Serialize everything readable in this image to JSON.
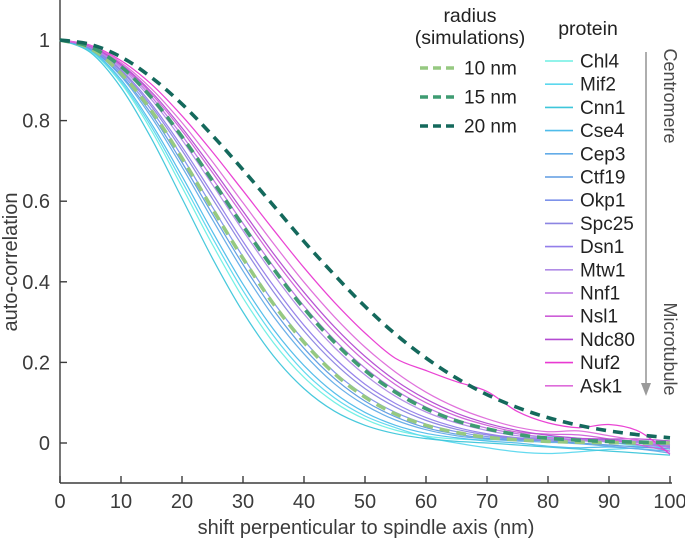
{
  "chart_data": {
    "type": "line",
    "title": "",
    "xlabel": "shift perpenticular to spindle axis (nm)",
    "ylabel": "auto-correlation",
    "xlim": [
      0,
      100
    ],
    "ylim": [
      -0.1,
      1.1
    ],
    "x_ticks": [
      0,
      10,
      20,
      30,
      40,
      50,
      60,
      70,
      80,
      90,
      100
    ],
    "y_ticks": [
      0,
      0.2,
      0.4,
      0.6,
      0.8,
      1
    ],
    "grid": false,
    "legend_position": "top-right",
    "x": [
      0,
      5,
      10,
      15,
      20,
      25,
      30,
      35,
      40,
      45,
      50,
      55,
      60,
      65,
      70,
      75,
      80,
      85,
      90,
      95,
      100
    ],
    "proteins": [
      {
        "name": "Chl4",
        "color": "#6FEFE4",
        "values": [
          1,
          0.972,
          0.893,
          0.775,
          0.635,
          0.492,
          0.36,
          0.249,
          0.163,
          0.101,
          0.059,
          0.032,
          0.017,
          0.01,
          0.008,
          0.012,
          0.016,
          0.012,
          0.002,
          -0.008,
          -0.015
        ]
      },
      {
        "name": "Mif2",
        "color": "#5CD8EE",
        "values": [
          1,
          0.973,
          0.897,
          0.784,
          0.649,
          0.509,
          0.378,
          0.266,
          0.177,
          0.112,
          0.067,
          0.038,
          0.015,
          0.0,
          -0.012,
          -0.022,
          -0.026,
          -0.022,
          -0.016,
          -0.012,
          -0.01
        ]
      },
      {
        "name": "Cnn1",
        "color": "#3EC6DA",
        "values": [
          1,
          0.969,
          0.882,
          0.755,
          0.607,
          0.458,
          0.325,
          0.216,
          0.135,
          0.079,
          0.044,
          0.023,
          0.011,
          0.004,
          0.0,
          -0.005,
          -0.01,
          -0.015,
          -0.02,
          -0.025,
          -0.03
        ]
      },
      {
        "name": "Cse4",
        "color": "#4FBCEA",
        "values": [
          1,
          0.975,
          0.902,
          0.792,
          0.662,
          0.524,
          0.394,
          0.282,
          0.192,
          0.124,
          0.076,
          0.044,
          0.024,
          0.013,
          0.005,
          0.0,
          -0.008,
          -0.012,
          -0.01,
          -0.015,
          -0.02
        ]
      },
      {
        "name": "Cep3",
        "color": "#63ACE8",
        "values": [
          1,
          0.977,
          0.91,
          0.808,
          0.685,
          0.554,
          0.427,
          0.314,
          0.221,
          0.147,
          0.094,
          0.057,
          0.033,
          0.018,
          0.01,
          0.005,
          0.002,
          -0.002,
          -0.008,
          -0.015,
          -0.025
        ]
      },
      {
        "name": "Ctf19",
        "color": "#5F9BE2",
        "values": [
          1,
          0.978,
          0.913,
          0.816,
          0.696,
          0.568,
          0.443,
          0.33,
          0.235,
          0.16,
          0.104,
          0.065,
          0.038,
          0.022,
          0.012,
          0.008,
          0.005,
          0.0,
          -0.005,
          -0.01,
          -0.015
        ]
      },
      {
        "name": "Okp1",
        "color": "#7D92EA",
        "values": [
          1,
          0.979,
          0.918,
          0.826,
          0.711,
          0.585,
          0.462,
          0.349,
          0.254,
          0.176,
          0.118,
          0.076,
          0.047,
          0.028,
          0.016,
          0.011,
          0.009,
          0.008,
          0.002,
          -0.005,
          -0.01
        ]
      },
      {
        "name": "Spc25",
        "color": "#8C85E2",
        "values": [
          1,
          0.98,
          0.923,
          0.835,
          0.726,
          0.606,
          0.487,
          0.375,
          0.278,
          0.198,
          0.135,
          0.089,
          0.056,
          0.034,
          0.02,
          0.011,
          0.006,
          0.005,
          0.005,
          0.0,
          -0.008
        ]
      },
      {
        "name": "Dsn1",
        "color": "#937EEA",
        "values": [
          1,
          0.981,
          0.926,
          0.841,
          0.735,
          0.618,
          0.5,
          0.39,
          0.292,
          0.211,
          0.146,
          0.098,
          0.063,
          0.039,
          0.023,
          0.013,
          0.01,
          0.01,
          0.008,
          0.003,
          -0.005
        ]
      },
      {
        "name": "Mtw1",
        "color": "#B18CE6",
        "values": [
          1,
          0.982,
          0.931,
          0.852,
          0.752,
          0.641,
          0.527,
          0.418,
          0.32,
          0.237,
          0.169,
          0.116,
          0.077,
          0.05,
          0.031,
          0.018,
          0.011,
          0.006,
          0.004,
          0.006,
          0.0
        ]
      },
      {
        "name": "Nnf1",
        "color": "#BC74E2",
        "values": [
          1,
          0.983,
          0.935,
          0.859,
          0.763,
          0.656,
          0.545,
          0.438,
          0.34,
          0.256,
          0.186,
          0.131,
          0.089,
          0.058,
          0.037,
          0.023,
          0.014,
          0.008,
          0.005,
          0.0,
          -0.012
        ]
      },
      {
        "name": "Nsl1",
        "color": "#CD5ED8",
        "values": [
          1,
          0.984,
          0.938,
          0.866,
          0.775,
          0.671,
          0.564,
          0.458,
          0.361,
          0.275,
          0.203,
          0.145,
          0.1,
          0.067,
          0.044,
          0.027,
          0.022,
          0.02,
          0.01,
          -0.005,
          -0.02
        ]
      },
      {
        "name": "Ndc80",
        "color": "#B44BD2",
        "values": [
          1,
          0.985,
          0.94,
          0.871,
          0.782,
          0.681,
          0.575,
          0.47,
          0.374,
          0.288,
          0.215,
          0.155,
          0.109,
          0.074,
          0.049,
          0.031,
          0.019,
          0.012,
          0.01,
          0.01,
          0.005
        ]
      },
      {
        "name": "Nuf2",
        "color": "#E93AD2",
        "values": [
          1,
          0.987,
          0.949,
          0.89,
          0.812,
          0.722,
          0.626,
          0.529,
          0.435,
          0.349,
          0.273,
          0.21,
          0.18,
          0.152,
          0.128,
          0.078,
          0.05,
          0.038,
          0.046,
          0.028,
          -0.028
        ]
      },
      {
        "name": "Ask1",
        "color": "#DE6CDA",
        "values": [
          1,
          0.986,
          0.944,
          0.879,
          0.795,
          0.698,
          0.596,
          0.495,
          0.399,
          0.313,
          0.238,
          0.176,
          0.126,
          0.088,
          0.06,
          0.039,
          0.028,
          0.03,
          0.018,
          0.006,
          -0.005
        ]
      }
    ],
    "simulations": [
      {
        "name": "10 nm",
        "color": "#96C981",
        "values": [
          1,
          0.979,
          0.917,
          0.824,
          0.707,
          0.581,
          0.458,
          0.345,
          0.25,
          0.172,
          0.114,
          0.072,
          0.044,
          0.026,
          0.014,
          0.008,
          0.004,
          0.002,
          0.001,
          0.0,
          0.0
        ]
      },
      {
        "name": "15 nm",
        "color": "#3E9C72",
        "values": [
          1,
          0.983,
          0.934,
          0.857,
          0.76,
          0.651,
          0.539,
          0.432,
          0.334,
          0.25,
          0.18,
          0.126,
          0.085,
          0.055,
          0.035,
          0.021,
          0.012,
          0.007,
          0.004,
          0.002,
          0.001
        ]
      },
      {
        "name": "20 nm",
        "color": "#14695C",
        "values": [
          1,
          0.989,
          0.958,
          0.907,
          0.841,
          0.763,
          0.678,
          0.589,
          0.5,
          0.417,
          0.339,
          0.27,
          0.211,
          0.161,
          0.12,
          0.088,
          0.063,
          0.044,
          0.03,
          0.02,
          0.013
        ]
      }
    ]
  },
  "legend_radius": {
    "title_line1": "radius",
    "title_line2": "(simulations)"
  },
  "legend_protein": {
    "title": "protein"
  },
  "annotation": {
    "top": "Centromere",
    "bottom": "Microtubule"
  },
  "colors": {
    "axis": "#3b3b3b",
    "tick_text": "#3b3b3b",
    "annotation_line": "#9a9a9a",
    "annotation_text": "#4a4a4a"
  }
}
